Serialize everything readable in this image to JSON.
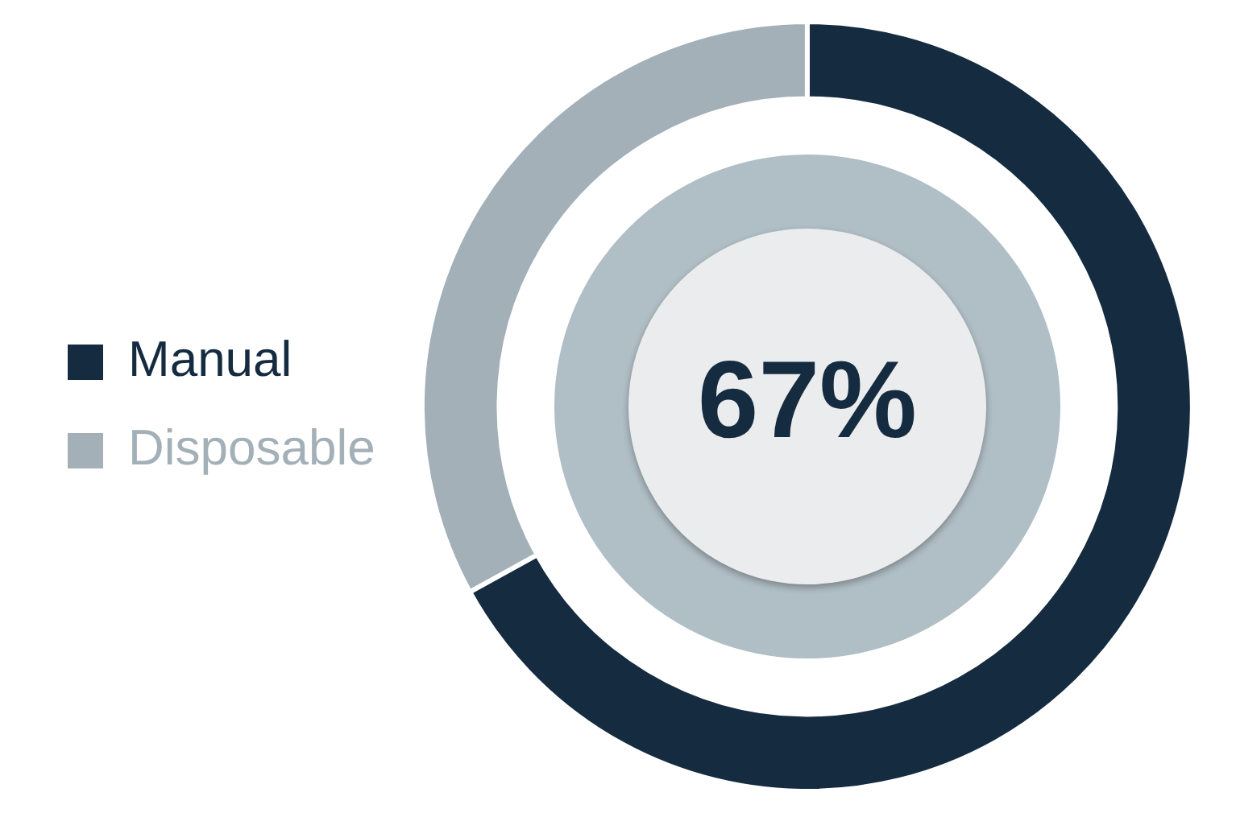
{
  "chart_data": {
    "type": "donut",
    "categories": [
      "Manual",
      "Disposable"
    ],
    "values": [
      67,
      33
    ],
    "colors": [
      "#152b40",
      "#a3b0b8"
    ],
    "legend": "left",
    "annotations": [
      "67%"
    ]
  }
}
